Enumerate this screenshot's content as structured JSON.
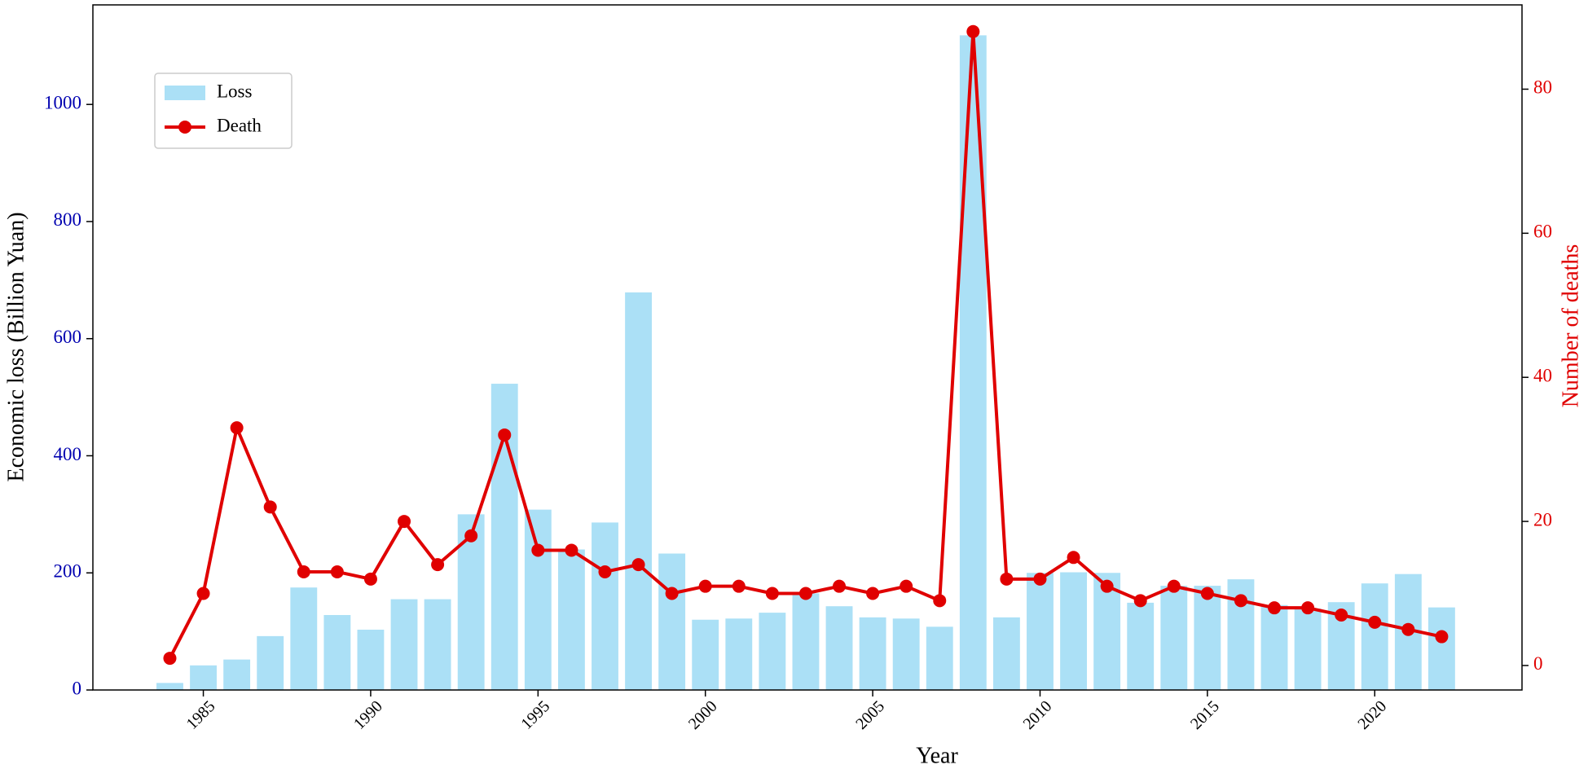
{
  "chart_data": {
    "type": "bar_line",
    "x_label": "Year",
    "y_label": "Economic loss (Billion Yuan)",
    "y2_label": "Number of deaths",
    "x": [
      1984,
      1985,
      1986,
      1987,
      1988,
      1989,
      1990,
      1991,
      1992,
      1993,
      1994,
      1995,
      1996,
      1997,
      1998,
      1999,
      2000,
      2001,
      2002,
      2003,
      2004,
      2005,
      2006,
      2007,
      2008,
      2009,
      2010,
      2011,
      2012,
      2013,
      2014,
      2015,
      2016,
      2017,
      2018,
      2019,
      2020,
      2021,
      2022
    ],
    "series": [
      {
        "name": "Loss",
        "type": "bar",
        "color": "#abe0f6",
        "values": [
          12,
          42,
          52,
          92,
          175,
          128,
          103,
          155,
          155,
          300,
          523,
          308,
          240,
          286,
          679,
          233,
          120,
          122,
          132,
          165,
          143,
          124,
          122,
          108,
          1118,
          124,
          200,
          201,
          200,
          149,
          178,
          178,
          189,
          145,
          139,
          150,
          182,
          198,
          141
        ]
      },
      {
        "name": "Death",
        "type": "line",
        "axis": "y2",
        "color": "#e00000",
        "values": [
          1,
          10,
          33,
          22,
          13,
          13,
          12,
          20,
          14,
          18,
          32,
          16,
          16,
          13,
          14,
          10,
          11,
          11,
          10,
          10,
          11,
          10,
          11,
          9,
          88,
          12,
          12,
          15,
          11,
          9,
          11,
          10,
          9,
          8,
          8,
          7,
          6,
          5,
          4
        ]
      }
    ],
    "xlim": [
      1981.7,
      2024.4
    ],
    "xticks": [
      1985,
      1990,
      1995,
      2000,
      2005,
      2010,
      2015,
      2020
    ],
    "ylim": [
      0,
      1170
    ],
    "yticks": [
      0,
      200,
      400,
      600,
      800,
      1000
    ],
    "y2lim": [
      -3.4,
      91.7
    ],
    "y2ticks": [
      0,
      20,
      40,
      60,
      80
    ],
    "y_tick_color": "#0000b0",
    "y2_tick_color": "#e00000",
    "legend": "upper left",
    "grid": false
  }
}
